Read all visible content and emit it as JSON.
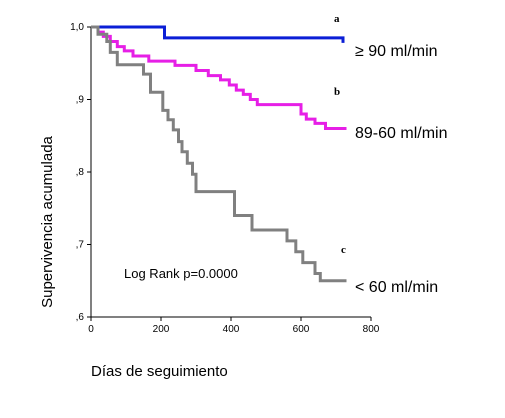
{
  "chart_data": {
    "type": "line",
    "step": true,
    "title": "",
    "xlabel": "Días de seguimiento",
    "ylabel": "Supervivencia acumulada",
    "xlim": [
      0,
      800
    ],
    "ylim": [
      0.6,
      1.0
    ],
    "x_ticks": [
      0,
      200,
      400,
      600,
      800
    ],
    "y_ticks": [
      0.6,
      0.7,
      0.8,
      0.9,
      1.0
    ],
    "x_tick_labels": [
      "0",
      "200",
      "400",
      "600",
      "800"
    ],
    "y_tick_labels": [
      ",6",
      ",7",
      ",8",
      ",9",
      "1,0"
    ],
    "grid": false,
    "annotation": "Log Rank  p=0.0000",
    "series": [
      {
        "name": "≥ 90 ml/min",
        "letter": "a",
        "color": "#0b1fd6",
        "points": [
          [
            0,
            1.0
          ],
          [
            210,
            1.0
          ],
          [
            210,
            0.985
          ],
          [
            720,
            0.985
          ],
          [
            720,
            0.978
          ]
        ]
      },
      {
        "name": "89-60 ml/min",
        "letter": "b",
        "color": "#e61fe6",
        "points": [
          [
            0,
            1.0
          ],
          [
            20,
            1.0
          ],
          [
            20,
            0.993
          ],
          [
            35,
            0.993
          ],
          [
            35,
            0.987
          ],
          [
            55,
            0.987
          ],
          [
            55,
            0.98
          ],
          [
            75,
            0.98
          ],
          [
            75,
            0.973
          ],
          [
            95,
            0.973
          ],
          [
            95,
            0.967
          ],
          [
            120,
            0.967
          ],
          [
            120,
            0.96
          ],
          [
            165,
            0.96
          ],
          [
            165,
            0.953
          ],
          [
            240,
            0.953
          ],
          [
            240,
            0.947
          ],
          [
            300,
            0.947
          ],
          [
            300,
            0.94
          ],
          [
            335,
            0.94
          ],
          [
            335,
            0.933
          ],
          [
            370,
            0.933
          ],
          [
            370,
            0.927
          ],
          [
            395,
            0.927
          ],
          [
            395,
            0.92
          ],
          [
            415,
            0.92
          ],
          [
            415,
            0.913
          ],
          [
            435,
            0.913
          ],
          [
            435,
            0.907
          ],
          [
            455,
            0.907
          ],
          [
            455,
            0.9
          ],
          [
            475,
            0.9
          ],
          [
            475,
            0.893
          ],
          [
            600,
            0.893
          ],
          [
            600,
            0.88
          ],
          [
            615,
            0.88
          ],
          [
            615,
            0.873
          ],
          [
            640,
            0.873
          ],
          [
            640,
            0.867
          ],
          [
            670,
            0.867
          ],
          [
            670,
            0.86
          ],
          [
            730,
            0.86
          ]
        ]
      },
      {
        "name": "< 60 ml/min",
        "letter": "c",
        "color": "#808080",
        "points": [
          [
            0,
            1.0
          ],
          [
            20,
            1.0
          ],
          [
            20,
            0.99
          ],
          [
            45,
            0.99
          ],
          [
            45,
            0.98
          ],
          [
            55,
            0.98
          ],
          [
            55,
            0.965
          ],
          [
            75,
            0.965
          ],
          [
            75,
            0.948
          ],
          [
            150,
            0.948
          ],
          [
            150,
            0.935
          ],
          [
            170,
            0.935
          ],
          [
            170,
            0.91
          ],
          [
            205,
            0.91
          ],
          [
            205,
            0.885
          ],
          [
            220,
            0.885
          ],
          [
            220,
            0.872
          ],
          [
            235,
            0.872
          ],
          [
            235,
            0.858
          ],
          [
            250,
            0.858
          ],
          [
            250,
            0.842
          ],
          [
            260,
            0.842
          ],
          [
            260,
            0.828
          ],
          [
            275,
            0.828
          ],
          [
            275,
            0.812
          ],
          [
            290,
            0.812
          ],
          [
            290,
            0.797
          ],
          [
            300,
            0.797
          ],
          [
            300,
            0.773
          ],
          [
            410,
            0.773
          ],
          [
            410,
            0.74
          ],
          [
            460,
            0.74
          ],
          [
            460,
            0.72
          ],
          [
            560,
            0.72
          ],
          [
            560,
            0.705
          ],
          [
            585,
            0.705
          ],
          [
            585,
            0.69
          ],
          [
            605,
            0.69
          ],
          [
            605,
            0.675
          ],
          [
            640,
            0.675
          ],
          [
            640,
            0.66
          ],
          [
            655,
            0.66
          ],
          [
            655,
            0.65
          ],
          [
            730,
            0.65
          ]
        ]
      }
    ]
  }
}
